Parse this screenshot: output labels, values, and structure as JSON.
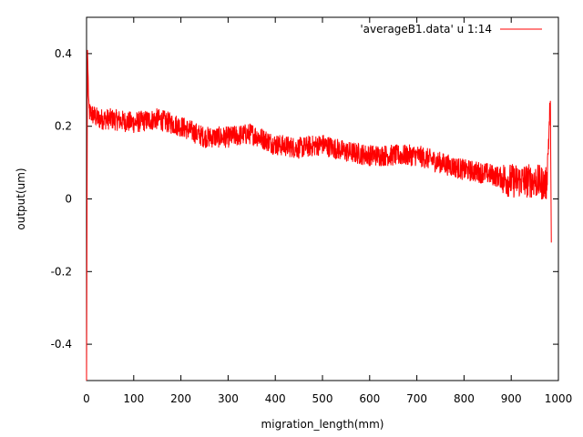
{
  "chart_data": {
    "type": "line",
    "title": "",
    "xlabel": "migration_length(mm)",
    "ylabel": "output(um)",
    "xlim": [
      0,
      1000
    ],
    "ylim": [
      -0.5,
      0.5
    ],
    "x_ticks": [
      0,
      100,
      200,
      300,
      400,
      500,
      600,
      700,
      800,
      900,
      1000
    ],
    "x_tick_labels": [
      "0",
      "100",
      "200",
      "300",
      "400",
      "500",
      "600",
      "700",
      "800",
      "900",
      "1000"
    ],
    "y_ticks": [
      -0.4,
      -0.2,
      0,
      0.2,
      0.4
    ],
    "y_tick_labels": [
      "-0.4",
      "-0.2",
      "0",
      "0.2",
      "0.4"
    ],
    "grid": false,
    "legend_position": "top-right",
    "series": [
      {
        "name": "'averageB1.data' u 1:14",
        "color": "#ff0000",
        "trend": {
          "x": [
            0,
            2,
            5,
            25,
            50,
            100,
            150,
            200,
            250,
            300,
            350,
            400,
            450,
            500,
            550,
            600,
            650,
            700,
            750,
            800,
            850,
            900,
            950,
            975,
            983,
            985
          ],
          "y": [
            -0.5,
            0.41,
            0.24,
            0.22,
            0.22,
            0.21,
            0.22,
            0.2,
            0.17,
            0.17,
            0.18,
            0.15,
            0.14,
            0.15,
            0.13,
            0.12,
            0.12,
            0.12,
            0.1,
            0.08,
            0.07,
            0.05,
            0.05,
            0.04,
            0.27,
            -0.12
          ]
        },
        "noise_amplitude": 0.03
      }
    ]
  }
}
